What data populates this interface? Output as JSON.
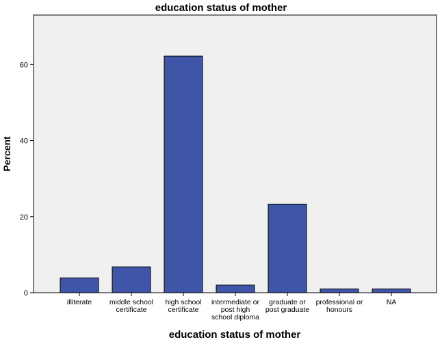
{
  "chart_data": {
    "type": "bar",
    "title": "education status of mother",
    "xlabel": "education status of mother",
    "ylabel": "Percent",
    "categories": [
      [
        "illiterate"
      ],
      [
        "middle school",
        "certificate"
      ],
      [
        "high school",
        "certificate"
      ],
      [
        "intermediate or",
        "post high",
        "school diploma"
      ],
      [
        "graduate or",
        "post graduate"
      ],
      [
        "professional or",
        "honours"
      ],
      [
        "NA"
      ]
    ],
    "values": [
      3.9,
      6.8,
      62.2,
      2.0,
      23.3,
      1.0,
      1.0
    ],
    "yticks": [
      0,
      20,
      40,
      60
    ],
    "ylim": [
      0,
      73
    ],
    "grid": false,
    "colors": {
      "bar": "#3f55a8",
      "bar_edge": "#000000",
      "plot_bg": "#f0f0f0"
    }
  }
}
